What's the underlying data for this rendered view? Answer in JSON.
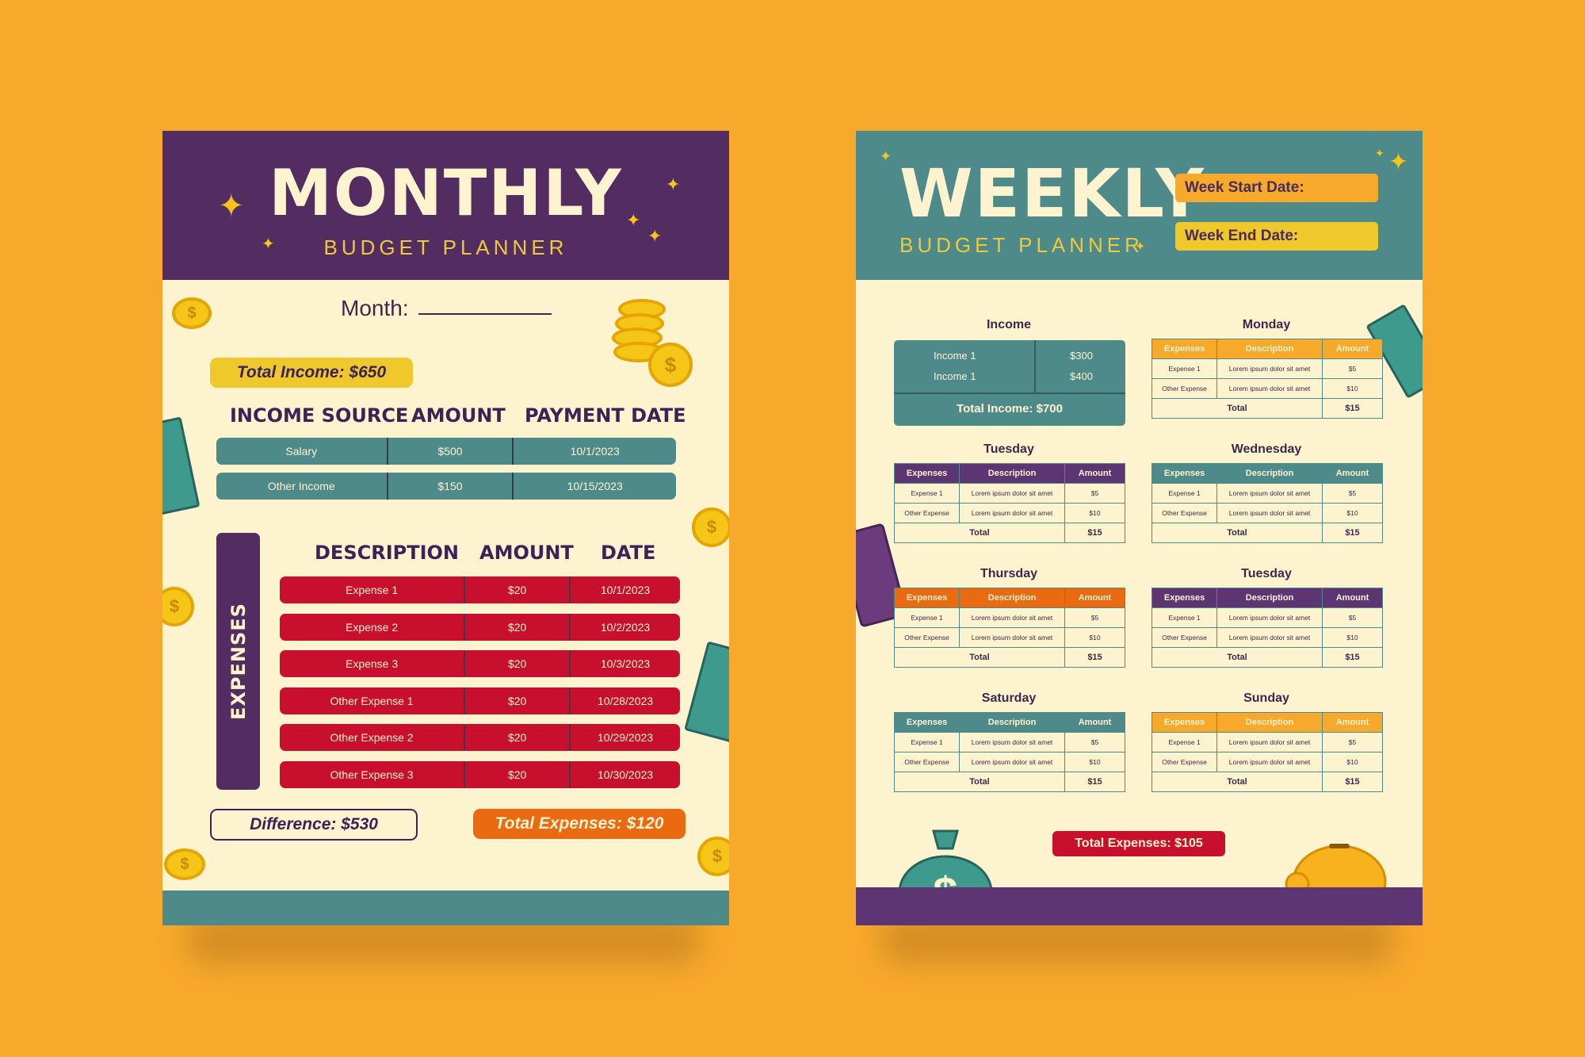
{
  "monthly": {
    "title": "MONTHLY",
    "subtitle": "BUDGET PLANNER",
    "month_label": "Month:",
    "total_income": "Total Income: $650",
    "income_headers": [
      "INCOME SOURCE",
      "AMOUNT",
      "PAYMENT DATE"
    ],
    "income_rows": [
      {
        "source": "Salary",
        "amount": "$500",
        "date": "10/1/2023"
      },
      {
        "source": "Other Income",
        "amount": "$150",
        "date": "10/15/2023"
      }
    ],
    "expenses_label": "EXPENSES",
    "expense_headers": [
      "DESCRIPTION",
      "AMOUNT",
      "DATE"
    ],
    "expense_rows": [
      {
        "desc": "Expense 1",
        "amount": "$20",
        "date": "10/1/2023"
      },
      {
        "desc": "Expense 2",
        "amount": "$20",
        "date": "10/2/2023"
      },
      {
        "desc": "Expense 3",
        "amount": "$20",
        "date": "10/3/2023"
      },
      {
        "desc": "Other Expense 1",
        "amount": "$20",
        "date": "10/28/2023"
      },
      {
        "desc": "Other Expense 2",
        "amount": "$20",
        "date": "10/29/2023"
      },
      {
        "desc": "Other Expense 3",
        "amount": "$20",
        "date": "10/30/2023"
      }
    ],
    "difference": "Difference: $530",
    "total_expenses": "Total Expenses: $120"
  },
  "weekly": {
    "title": "WEEKLY",
    "subtitle": "BUDGET PLANNER",
    "week_start": "Week Start Date:",
    "week_end": "Week End Date:",
    "income": {
      "title": "Income",
      "rows": [
        {
          "label": "Income 1",
          "amount": "$300"
        },
        {
          "label": "Income 1",
          "amount": "$400"
        }
      ],
      "total": "Total Income: $700"
    },
    "table_headers": [
      "Expenses",
      "Description",
      "Amount"
    ],
    "days": [
      {
        "name": "Monday",
        "color": "#F7A92C",
        "rows": [
          [
            "Expense 1",
            "Lorem ipsum dolor sit amet",
            "$5"
          ],
          [
            "Other Expense",
            "Lorem ipsum dolor sit amet",
            "$10"
          ]
        ],
        "total_label": "Total",
        "total": "$15"
      },
      {
        "name": "Tuesday",
        "color": "#5D3573",
        "rows": [
          [
            "Expense 1",
            "Lorem ipsum dolor sit amet",
            "$5"
          ],
          [
            "Other Expense",
            "Lorem ipsum dolor sit amet",
            "$10"
          ]
        ],
        "total_label": "Total",
        "total": "$15"
      },
      {
        "name": "Wednesday",
        "color": "#4F8A8B",
        "rows": [
          [
            "Expense 1",
            "Lorem ipsum dolor sit amet",
            "$5"
          ],
          [
            "Other Expense",
            "Lorem ipsum dolor sit amet",
            "$10"
          ]
        ],
        "total_label": "Total",
        "total": "$15"
      },
      {
        "name": "Thursday",
        "color": "#E96A10",
        "rows": [
          [
            "Expense 1",
            "Lorem ipsum dolor sit amet",
            "$5"
          ],
          [
            "Other Expense",
            "Lorem ipsum dolor sit amet",
            "$10"
          ]
        ],
        "total_label": "Total",
        "total": "$15"
      },
      {
        "name": "Tuesday",
        "color": "#5D3573",
        "rows": [
          [
            "Expense 1",
            "Lorem ipsum dolor sit amet",
            "$5"
          ],
          [
            "Other Expense",
            "Lorem ipsum dolor sit amet",
            "$10"
          ]
        ],
        "total_label": "Total",
        "total": "$15"
      },
      {
        "name": "Saturday",
        "color": "#4F8A8B",
        "rows": [
          [
            "Expense 1",
            "Lorem ipsum dolor sit amet",
            "$5"
          ],
          [
            "Other Expense",
            "Lorem ipsum dolor sit amet",
            "$10"
          ]
        ],
        "total_label": "Total",
        "total": "$15"
      },
      {
        "name": "Sunday",
        "color": "#F7A92C",
        "rows": [
          [
            "Expense 1",
            "Lorem ipsum dolor sit amet",
            "$5"
          ],
          [
            "Other Expense",
            "Lorem ipsum dolor sit amet",
            "$10"
          ]
        ],
        "total_label": "Total",
        "total": "$15"
      }
    ],
    "total_expenses": "Total Expenses: $105"
  },
  "colors": {
    "background": "#F7A92C",
    "purple": "#532D61",
    "teal": "#4F8A8B",
    "cream": "#FEF3CF",
    "red": "#C8102E",
    "yellow": "#F5C518",
    "orange": "#E96A10"
  },
  "icons": [
    "star-icon",
    "coin-icon",
    "coin-stack-icon",
    "cash-icon",
    "money-bag-icon",
    "piggy-bank-icon",
    "wallet-icon"
  ]
}
